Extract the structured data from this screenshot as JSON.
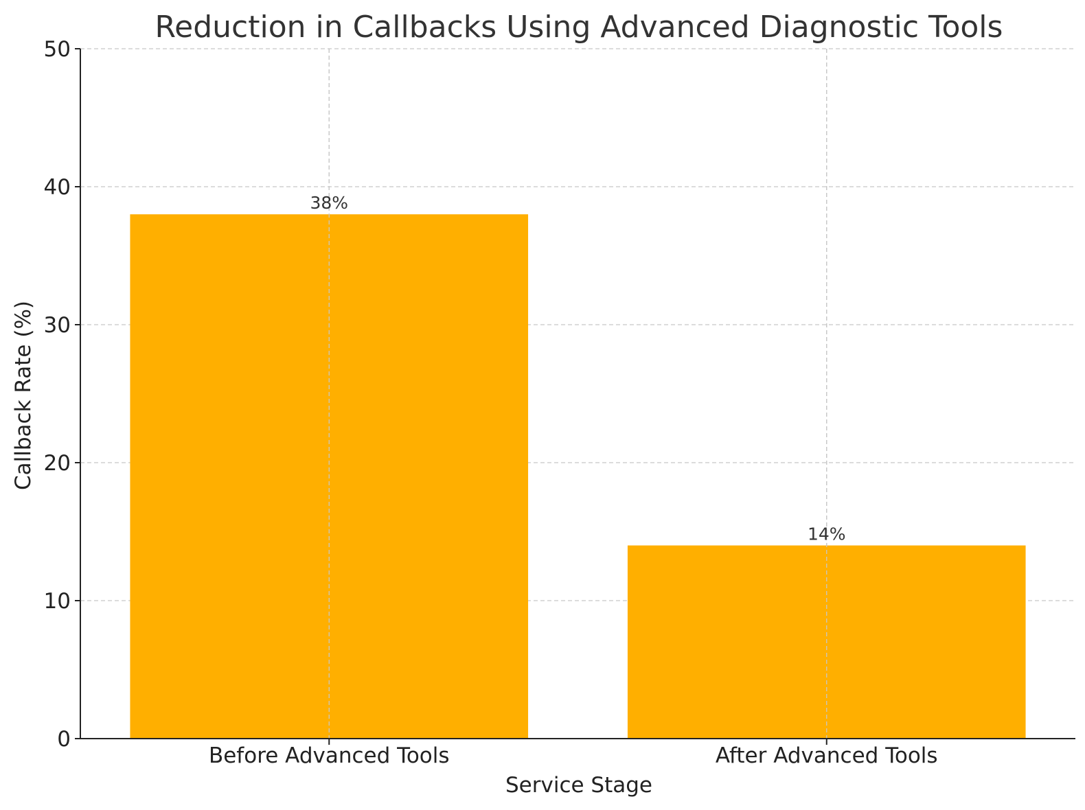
{
  "chart_data": {
    "type": "bar",
    "title": "Reduction in Callbacks Using Advanced Diagnostic Tools",
    "xlabel": "Service Stage",
    "ylabel": "Callback Rate (%)",
    "categories": [
      "Before Advanced Tools",
      "After Advanced Tools"
    ],
    "values": [
      38,
      14
    ],
    "data_labels": [
      "38%",
      "14%"
    ],
    "ylim": [
      0,
      50
    ],
    "yticks": [
      0,
      10,
      20,
      30,
      40,
      50
    ],
    "bar_color": "#FFAF00",
    "grid": true
  }
}
